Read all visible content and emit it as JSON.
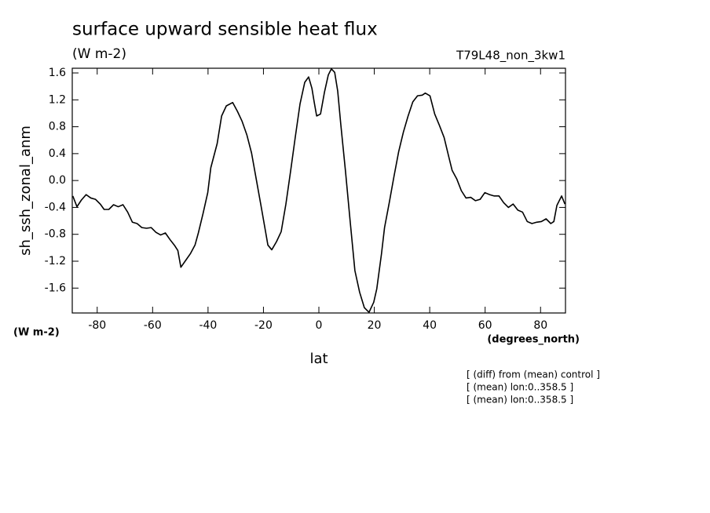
{
  "chart_data": {
    "type": "line",
    "title": "surface upward sensible heat flux",
    "subtitle": "(W m-2)",
    "dataset": "T79L48_non_3kw1",
    "ylabel": "sh_ssh_zonal_anm",
    "y_units": "(W m-2)",
    "xlabel": "lat",
    "x_units": "(degrees_north)",
    "notes": [
      "[ (diff) from (mean) control ]",
      "[ (mean) lon:0..358.5 ]",
      "[ (mean) lon:0..358.5 ]"
    ],
    "color": "#000000",
    "xlim": [
      -89,
      89
    ],
    "ylim": [
      -1.97,
      1.67
    ],
    "xticks": [
      -80,
      -60,
      -40,
      -20,
      0,
      20,
      40,
      60,
      80
    ],
    "yticks": [
      1.6,
      1.2,
      0.8,
      0.4,
      {
        "value": 0,
        "label": "0.0"
      },
      -0.4,
      -0.8,
      -1.2,
      -1.6
    ],
    "x": [
      -88.8,
      -87.3,
      -85.7,
      -84.0,
      -82.3,
      -80.6,
      -78.9,
      -77.5,
      -75.8,
      -74.1,
      -72.4,
      -70.7,
      -69.0,
      -67.3,
      -65.6,
      -63.9,
      -62.2,
      -60.5,
      -58.8,
      -57.1,
      -55.4,
      -53.7,
      -52.0,
      -50.9,
      -49.8,
      -48.1,
      -46.4,
      -44.7,
      -43.5,
      -41.8,
      -40.1,
      -39.0,
      -36.7,
      -35.1,
      -33.4,
      -31.1,
      -29.4,
      -27.7,
      -26.0,
      -24.3,
      -22.6,
      -20.9,
      -19.2,
      -18.4,
      -17.0,
      -15.3,
      -13.6,
      -11.9,
      -10.2,
      -8.5,
      -6.8,
      -5.1,
      -3.7,
      -2.5,
      -1.7,
      -0.8,
      0.6,
      2.0,
      3.4,
      4.5,
      5.7,
      6.8,
      7.9,
      9.6,
      11.3,
      13.0,
      14.7,
      16.4,
      18.1,
      19.8,
      20.9,
      22.6,
      23.7,
      25.4,
      27.1,
      28.8,
      30.5,
      32.2,
      33.9,
      35.6,
      37.3,
      38.4,
      40.1,
      41.8,
      43.5,
      45.2,
      46.9,
      48.1,
      49.8,
      51.4,
      53.1,
      54.8,
      56.5,
      58.2,
      59.9,
      61.6,
      63.3,
      65.0,
      66.7,
      68.4,
      70.1,
      71.8,
      73.5,
      75.2,
      76.9,
      78.6,
      80.3,
      82.0,
      83.7,
      84.8,
      85.9,
      87.6,
      88.8
    ],
    "values": [
      -0.23,
      -0.39,
      -0.29,
      -0.21,
      -0.26,
      -0.28,
      -0.35,
      -0.43,
      -0.43,
      -0.36,
      -0.39,
      -0.36,
      -0.47,
      -0.62,
      -0.64,
      -0.7,
      -0.71,
      -0.7,
      -0.77,
      -0.81,
      -0.78,
      -0.88,
      -0.97,
      -1.04,
      -1.29,
      -1.19,
      -1.09,
      -0.96,
      -0.78,
      -0.49,
      -0.18,
      0.19,
      0.55,
      0.96,
      1.11,
      1.16,
      1.03,
      0.88,
      0.68,
      0.41,
      0.02,
      -0.37,
      -0.77,
      -0.96,
      -1.03,
      -0.91,
      -0.76,
      -0.35,
      0.14,
      0.65,
      1.14,
      1.46,
      1.54,
      1.37,
      1.17,
      0.96,
      0.99,
      1.31,
      1.57,
      1.66,
      1.61,
      1.33,
      0.84,
      0.14,
      -0.61,
      -1.34,
      -1.66,
      -1.89,
      -1.96,
      -1.81,
      -1.61,
      -1.09,
      -0.7,
      -0.33,
      0.06,
      0.43,
      0.72,
      0.96,
      1.17,
      1.26,
      1.27,
      1.3,
      1.26,
      0.99,
      0.82,
      0.64,
      0.35,
      0.15,
      0.02,
      -0.15,
      -0.26,
      -0.25,
      -0.3,
      -0.28,
      -0.18,
      -0.21,
      -0.23,
      -0.23,
      -0.33,
      -0.4,
      -0.35,
      -0.44,
      -0.47,
      -0.61,
      -0.64,
      -0.62,
      -0.61,
      -0.57,
      -0.64,
      -0.61,
      -0.37,
      -0.23,
      -0.35
    ]
  }
}
